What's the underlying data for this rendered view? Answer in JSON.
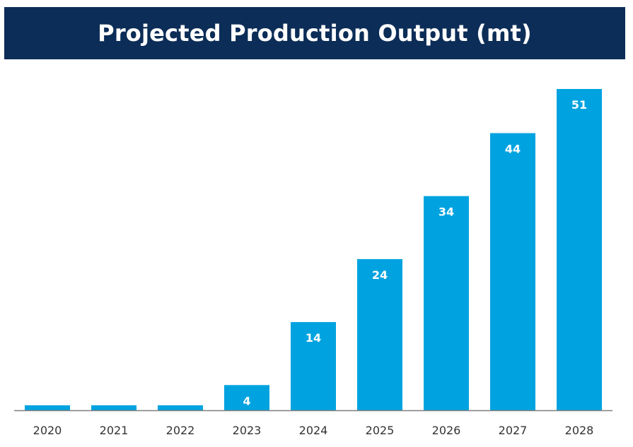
{
  "chart_data": {
    "type": "bar",
    "title": "Projected Production Output (mt)",
    "categories": [
      "2020",
      "2021",
      "2022",
      "2023",
      "2024",
      "2025",
      "2026",
      "2027",
      "2028"
    ],
    "values": [
      0.8,
      0.8,
      0.8,
      4,
      14,
      24,
      34,
      44,
      51
    ],
    "data_labels": [
      "",
      "",
      "",
      "4",
      "14",
      "24",
      "34",
      "44",
      "51"
    ],
    "xlabel": "",
    "ylabel": "",
    "ylim": [
      0,
      51
    ],
    "grid": false,
    "legend": "none"
  },
  "colors": {
    "banner": "#0c2d57",
    "bar": "#00a3e0",
    "axis": "#7f7f7f",
    "title_text": "#ffffff"
  }
}
